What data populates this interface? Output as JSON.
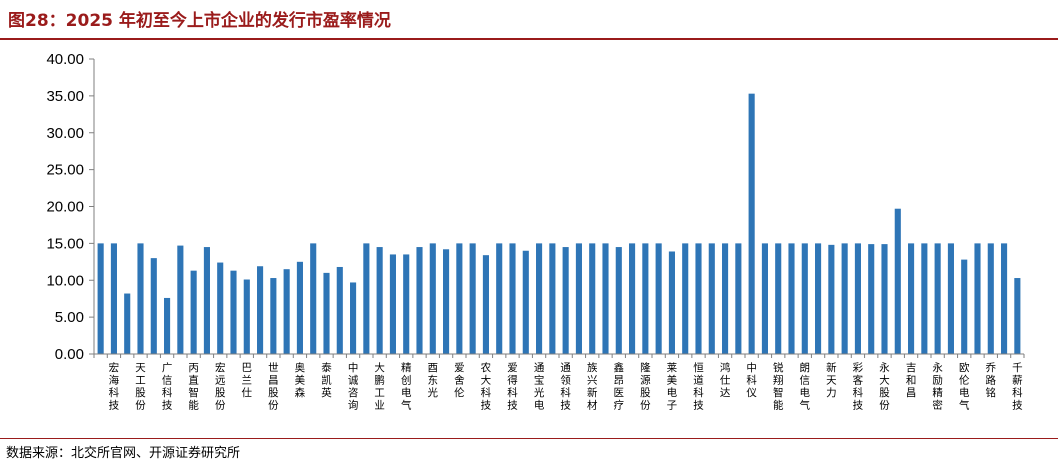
{
  "header": {
    "title": "图28：2025 年初至今上市企业的发行市盈率情况"
  },
  "footer": {
    "source": "数据来源：北交所官网、开源证券研究所"
  },
  "colors": {
    "bar": "#2e75b6",
    "accent": "#9a1b1b"
  },
  "chart_data": {
    "type": "bar",
    "title": "",
    "xlabel": "",
    "ylabel": "",
    "ylim": [
      0,
      40
    ],
    "yticks": [
      "0.00",
      "5.00",
      "10.00",
      "15.00",
      "20.00",
      "25.00",
      "30.00",
      "35.00",
      "40.00"
    ],
    "grid": false,
    "legend": "none",
    "categories": [
      "",
      "宏海科技",
      "",
      "天工股份",
      "",
      "广信科技",
      "",
      "丙直智能",
      "",
      "宏远股份",
      "",
      "巴兰仕",
      "",
      "世昌股份",
      "",
      "奥美森",
      "",
      "泰凯英",
      "",
      "中诚咨询",
      "",
      "大鹏工业",
      "",
      "精创电气",
      "",
      "酉东光",
      "",
      "爱舍伦",
      "",
      "农大科技",
      "",
      "爱得科技",
      "",
      "通宝光电",
      "",
      "通领科技",
      "",
      "族兴新材",
      "",
      "鑫昂医疗",
      "",
      "隆源股份",
      "",
      "莱美电子",
      "",
      "恒道科技",
      "",
      "鸿仕达",
      "",
      "中科仪",
      "",
      "锐翔智能",
      "",
      "朗信电气",
      "",
      "新天力",
      "",
      "彩客科技",
      "",
      "永大股份",
      "",
      "吉和昌",
      "",
      "永励精密",
      "",
      "欧伦电气",
      "",
      "乔路铭",
      "",
      "千薪科技"
    ],
    "values": [
      15.0,
      15.0,
      8.2,
      15.0,
      13.0,
      7.6,
      14.7,
      11.3,
      14.5,
      12.4,
      11.3,
      10.1,
      11.9,
      10.3,
      11.5,
      12.5,
      15.0,
      11.0,
      11.8,
      9.7,
      15.0,
      14.5,
      13.5,
      13.5,
      14.5,
      15.0,
      14.2,
      15.0,
      15.0,
      13.4,
      15.0,
      15.0,
      14.0,
      15.0,
      15.0,
      14.5,
      15.0,
      15.0,
      15.0,
      14.5,
      15.0,
      15.0,
      15.0,
      13.9,
      15.0,
      15.0,
      15.0,
      15.0,
      15.0,
      35.3,
      15.0,
      15.0,
      15.0,
      15.0,
      15.0,
      14.8,
      15.0,
      15.0,
      14.9,
      14.9,
      19.7,
      15.0,
      15.0,
      15.0,
      15.0,
      12.8,
      15.0,
      15.0,
      15.0,
      10.3
    ]
  }
}
